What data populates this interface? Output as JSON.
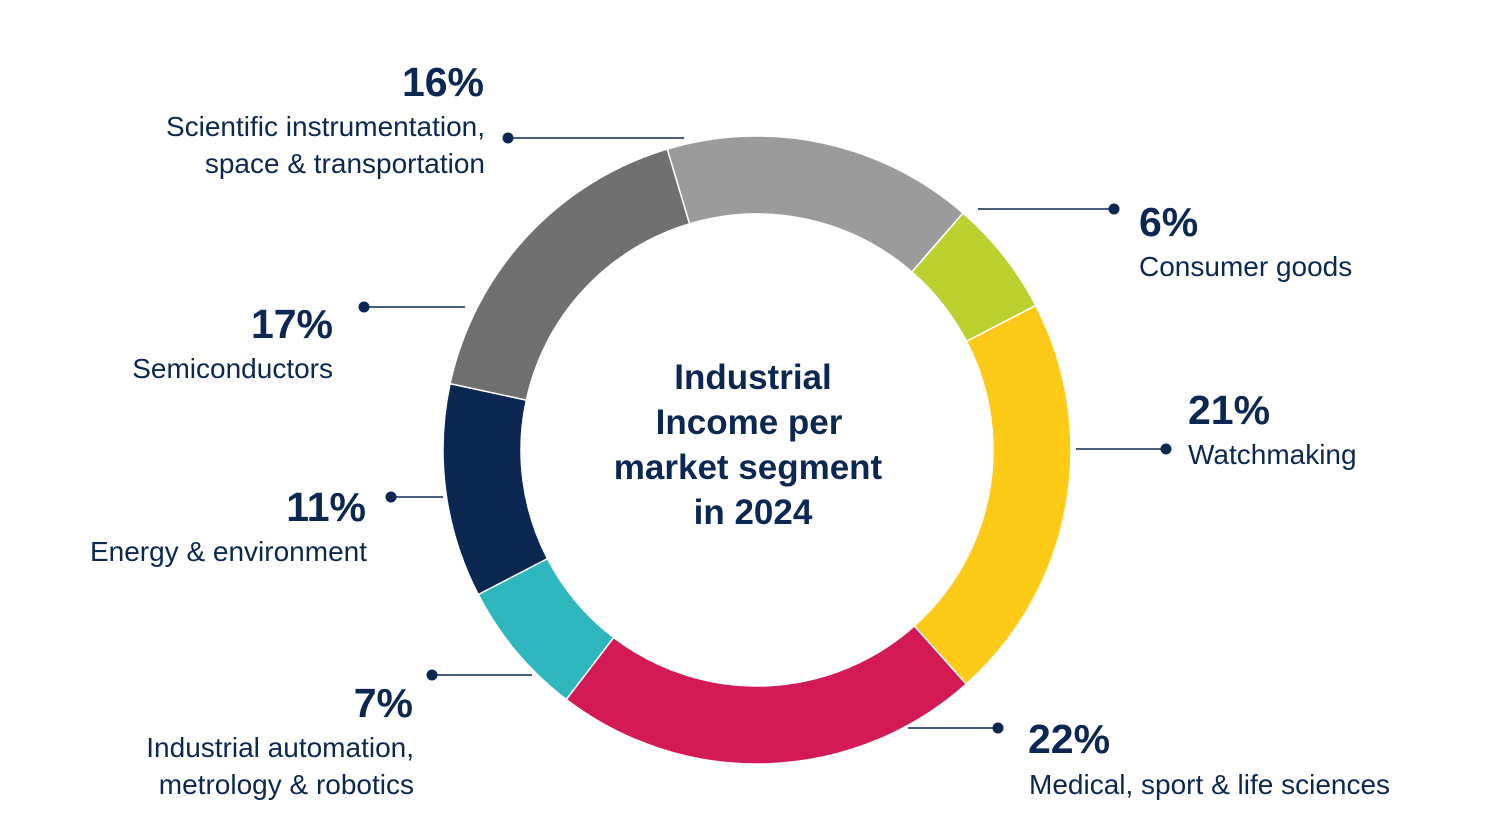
{
  "chart_data": {
    "type": "pie",
    "donut": true,
    "title": [
      "Industrial",
      "Income per",
      "market segment",
      "in 2024"
    ],
    "slices": [
      {
        "key": "consumer-goods",
        "label": [
          "Consumer goods"
        ],
        "value": 6,
        "pct_label": "6%",
        "color": "#bcd030"
      },
      {
        "key": "watchmaking",
        "label": [
          "Watchmaking"
        ],
        "value": 21,
        "pct_label": "21%",
        "color": "#fdca18"
      },
      {
        "key": "medical",
        "label": [
          "Medical, sport & life sciences"
        ],
        "value": 22,
        "pct_label": "22%",
        "color": "#d41a55"
      },
      {
        "key": "industrial-automation",
        "label": [
          "Industrial automation,",
          "metrology & robotics"
        ],
        "value": 7,
        "pct_label": "7%",
        "color": "#2fb7bf"
      },
      {
        "key": "energy",
        "label": [
          "Energy & environment"
        ],
        "value": 11,
        "pct_label": "11%",
        "color": "#0b2752"
      },
      {
        "key": "semiconductors",
        "label": [
          "Semiconductors"
        ],
        "value": 17,
        "pct_label": "17%",
        "color": "#707070"
      },
      {
        "key": "scientific",
        "label": [
          "Scientific instrumentation,",
          "space & transportation"
        ],
        "value": 16,
        "pct_label": "16%",
        "color": "#9b9b9b"
      }
    ],
    "legend": "callouts"
  }
}
